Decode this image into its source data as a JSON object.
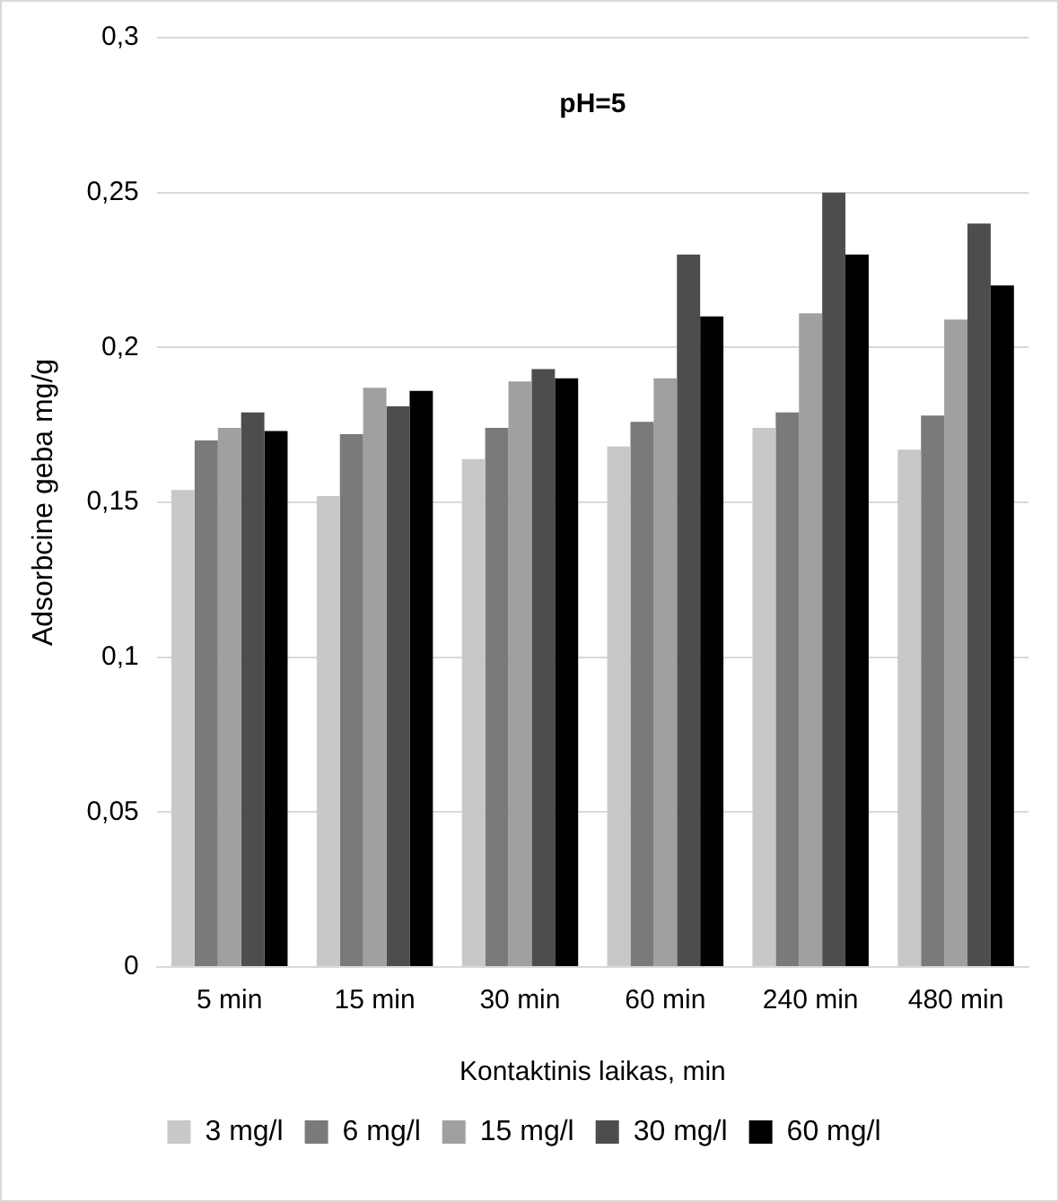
{
  "chart_data": {
    "type": "bar",
    "title": "pH=5",
    "xlabel": "Kontaktinis laikas, min",
    "ylabel": "Adsorbcine geba mg/g",
    "categories": [
      "5 min",
      "15 min",
      "30 min",
      "60 min",
      "240 min",
      "480 min"
    ],
    "series": [
      {
        "name": "3 mg/l",
        "color": "#c8c8c8",
        "values": [
          0.154,
          0.152,
          0.164,
          0.168,
          0.174,
          0.167
        ]
      },
      {
        "name": "6 mg/l",
        "color": "#7a7a7a",
        "values": [
          0.17,
          0.172,
          0.174,
          0.176,
          0.179,
          0.178
        ]
      },
      {
        "name": "15 mg/l",
        "color": "#a0a0a0",
        "values": [
          0.174,
          0.187,
          0.189,
          0.19,
          0.211,
          0.209
        ]
      },
      {
        "name": "30 mg/l",
        "color": "#4d4d4d",
        "values": [
          0.179,
          0.181,
          0.193,
          0.23,
          0.25,
          0.24
        ]
      },
      {
        "name": "60 mg/l",
        "color": "#000000",
        "values": [
          0.173,
          0.186,
          0.19,
          0.21,
          0.23,
          0.22
        ]
      }
    ],
    "ylim": [
      0,
      0.3
    ],
    "yticks": [
      0,
      {
        "value": 0.05,
        "label": "0,05"
      },
      {
        "value": 0.1,
        "label": "0,1"
      },
      {
        "value": 0.15,
        "label": "0,15"
      },
      {
        "value": 0.2,
        "label": "0,2"
      },
      {
        "value": 0.25,
        "label": "0,25"
      },
      {
        "value": 0.3,
        "label": "0,3"
      }
    ],
    "grid": "y",
    "legend": "bottom"
  }
}
